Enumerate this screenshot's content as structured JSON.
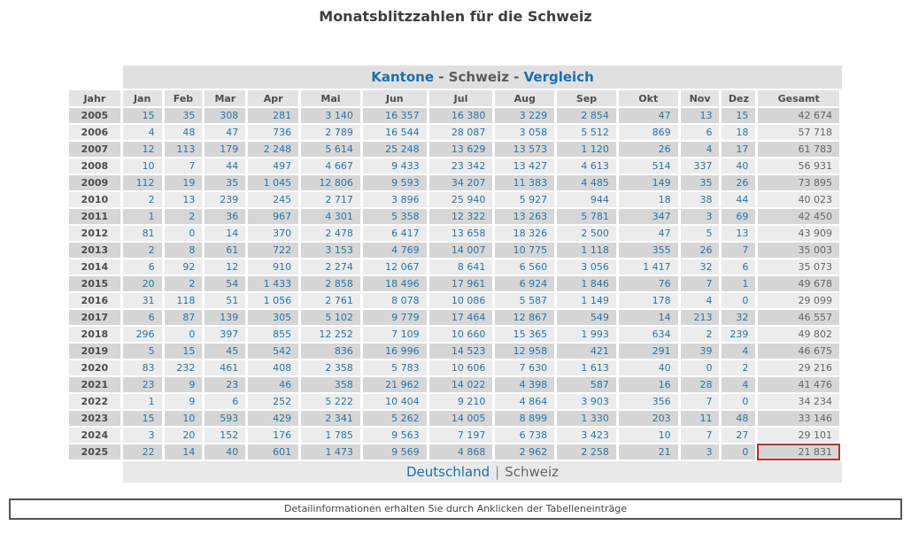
{
  "page_title": "Monatsblitzzahlen für die Schweiz",
  "header_bar": {
    "kantone": "Kantone",
    "sep1": " - ",
    "schweiz": "Schweiz",
    "sep2": " - ",
    "vergleich": "Vergleich"
  },
  "table": {
    "columns": [
      "Jahr",
      "Jan",
      "Feb",
      "Mar",
      "Apr",
      "Mai",
      "Jun",
      "Jul",
      "Aug",
      "Sep",
      "Okt",
      "Nov",
      "Dez",
      "Gesamt"
    ],
    "rows": [
      {
        "year": "2005",
        "values": [
          "15",
          "35",
          "308",
          "281",
          "3 140",
          "16 357",
          "16 380",
          "3 229",
          "2 854",
          "47",
          "13",
          "15"
        ],
        "total": "42 674"
      },
      {
        "year": "2006",
        "values": [
          "4",
          "48",
          "47",
          "736",
          "2 789",
          "16 544",
          "28 087",
          "3 058",
          "5 512",
          "869",
          "6",
          "18"
        ],
        "total": "57 718"
      },
      {
        "year": "2007",
        "values": [
          "12",
          "113",
          "179",
          "2 248",
          "5 614",
          "25 248",
          "13 629",
          "13 573",
          "1 120",
          "26",
          "4",
          "17"
        ],
        "total": "61 783"
      },
      {
        "year": "2008",
        "values": [
          "10",
          "7",
          "44",
          "497",
          "4 667",
          "9 433",
          "23 342",
          "13 427",
          "4 613",
          "514",
          "337",
          "40"
        ],
        "total": "56 931"
      },
      {
        "year": "2009",
        "values": [
          "112",
          "19",
          "35",
          "1 045",
          "12 806",
          "9 593",
          "34 207",
          "11 383",
          "4 485",
          "149",
          "35",
          "26"
        ],
        "total": "73 895"
      },
      {
        "year": "2010",
        "values": [
          "2",
          "13",
          "239",
          "245",
          "2 717",
          "3 896",
          "25 940",
          "5 927",
          "944",
          "18",
          "38",
          "44"
        ],
        "total": "40 023"
      },
      {
        "year": "2011",
        "values": [
          "1",
          "2",
          "36",
          "967",
          "4 301",
          "5 358",
          "12 322",
          "13 263",
          "5 781",
          "347",
          "3",
          "69"
        ],
        "total": "42 450"
      },
      {
        "year": "2012",
        "values": [
          "81",
          "0",
          "14",
          "370",
          "2 478",
          "6 417",
          "13 658",
          "18 326",
          "2 500",
          "47",
          "5",
          "13"
        ],
        "total": "43 909"
      },
      {
        "year": "2013",
        "values": [
          "2",
          "8",
          "61",
          "722",
          "3 153",
          "4 769",
          "14 007",
          "10 775",
          "1 118",
          "355",
          "26",
          "7"
        ],
        "total": "35 003"
      },
      {
        "year": "2014",
        "values": [
          "6",
          "92",
          "12",
          "910",
          "2 274",
          "12 067",
          "8 641",
          "6 560",
          "3 056",
          "1 417",
          "32",
          "6"
        ],
        "total": "35 073"
      },
      {
        "year": "2015",
        "values": [
          "20",
          "2",
          "54",
          "1 433",
          "2 858",
          "18 496",
          "17 961",
          "6 924",
          "1 846",
          "76",
          "7",
          "1"
        ],
        "total": "49 678"
      },
      {
        "year": "2016",
        "values": [
          "31",
          "118",
          "51",
          "1 056",
          "2 761",
          "8 078",
          "10 086",
          "5 587",
          "1 149",
          "178",
          "4",
          "0"
        ],
        "total": "29 099"
      },
      {
        "year": "2017",
        "values": [
          "6",
          "87",
          "139",
          "305",
          "5 102",
          "9 779",
          "17 464",
          "12 867",
          "549",
          "14",
          "213",
          "32"
        ],
        "total": "46 557"
      },
      {
        "year": "2018",
        "values": [
          "296",
          "0",
          "397",
          "855",
          "12 252",
          "7 109",
          "10 660",
          "15 365",
          "1 993",
          "634",
          "2",
          "239"
        ],
        "total": "49 802"
      },
      {
        "year": "2019",
        "values": [
          "5",
          "15",
          "45",
          "542",
          "836",
          "16 996",
          "14 523",
          "12 958",
          "421",
          "291",
          "39",
          "4"
        ],
        "total": "46 675"
      },
      {
        "year": "2020",
        "values": [
          "83",
          "232",
          "461",
          "408",
          "2 358",
          "5 783",
          "10 606",
          "7 630",
          "1 613",
          "40",
          "0",
          "2"
        ],
        "total": "29 216"
      },
      {
        "year": "2021",
        "values": [
          "23",
          "9",
          "23",
          "46",
          "358",
          "21 962",
          "14 022",
          "4 398",
          "587",
          "16",
          "28",
          "4"
        ],
        "total": "41 476"
      },
      {
        "year": "2022",
        "values": [
          "1",
          "9",
          "6",
          "252",
          "5 222",
          "10 404",
          "9 210",
          "4 864",
          "3 903",
          "356",
          "7",
          "0"
        ],
        "total": "34 234"
      },
      {
        "year": "2023",
        "values": [
          "15",
          "10",
          "593",
          "429",
          "2 341",
          "5 262",
          "14 005",
          "8 899",
          "1 330",
          "203",
          "11",
          "48"
        ],
        "total": "33 146"
      },
      {
        "year": "2024",
        "values": [
          "3",
          "20",
          "152",
          "176",
          "1 785",
          "9 563",
          "7 197",
          "6 738",
          "3 423",
          "10",
          "7",
          "27"
        ],
        "total": "29 101"
      },
      {
        "year": "2025",
        "values": [
          "22",
          "14",
          "40",
          "601",
          "1 473",
          "9 569",
          "4 868",
          "2 962",
          "2 258",
          "21",
          "3",
          "0"
        ],
        "total": "21 831"
      }
    ],
    "highlight": {
      "year": "2025",
      "column": "Gesamt"
    }
  },
  "footer": {
    "deutschland": "Deutschland",
    "separator": "|",
    "schweiz": "Schweiz"
  },
  "info_bar": {
    "text": "Detailinformationen erhalten Sie durch Anklicken der Tabelleneinträge"
  },
  "colors": {
    "link_blue": "#1a70ad",
    "data_blue": "#2a74a6",
    "highlight_red": "#b13530",
    "row_dark": "#d6d6d6",
    "row_light": "#ececec"
  }
}
